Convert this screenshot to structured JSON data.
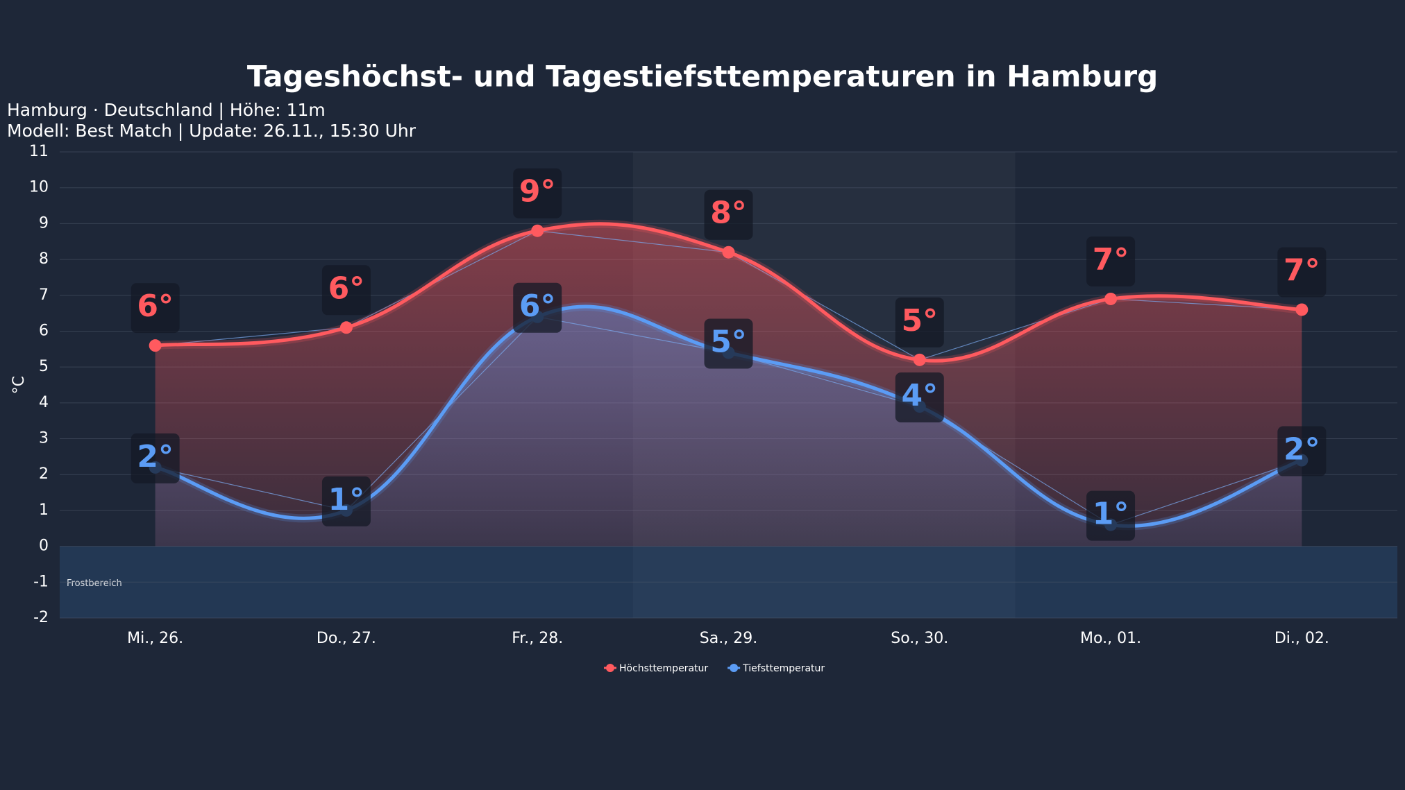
{
  "chart_data": {
    "type": "line",
    "title": "Tageshöchst- und Tagestiefsttemperaturen in Hamburg",
    "subtitle": [
      "Hamburg · Deutschland | Höhe: 11m",
      "Modell: Best Match | Update: 26.11., 15:30 Uhr"
    ],
    "y_label": "°C",
    "annotation": "Frostbereich",
    "categories": [
      "Mi., 26.",
      "Do., 27.",
      "Fr., 28.",
      "Sa., 29.",
      "So., 30.",
      "Mo., 01.",
      "Di., 02."
    ],
    "series": [
      {
        "name": "Höchsttemperatur",
        "color": "#ff5a5f",
        "values": [
          5.6,
          6.1,
          8.8,
          8.2,
          5.2,
          6.9,
          6.6
        ],
        "value_labels": [
          "6°",
          "6°",
          "9°",
          "8°",
          "5°",
          "7°",
          "7°"
        ]
      },
      {
        "name": "Tiefsttemperatur",
        "color": "#5b9cf5",
        "values": [
          2.2,
          1.0,
          6.4,
          5.4,
          3.9,
          0.6,
          2.4
        ],
        "value_labels": [
          "2°",
          "1°",
          "6°",
          "5°",
          "4°",
          "1°",
          "2°"
        ]
      }
    ],
    "ylim": [
      -2,
      11
    ],
    "yticks": [
      -2,
      -1,
      0,
      1,
      2,
      3,
      4,
      5,
      6,
      7,
      8,
      9,
      10,
      11
    ],
    "grid": true,
    "legend": "bottom"
  }
}
